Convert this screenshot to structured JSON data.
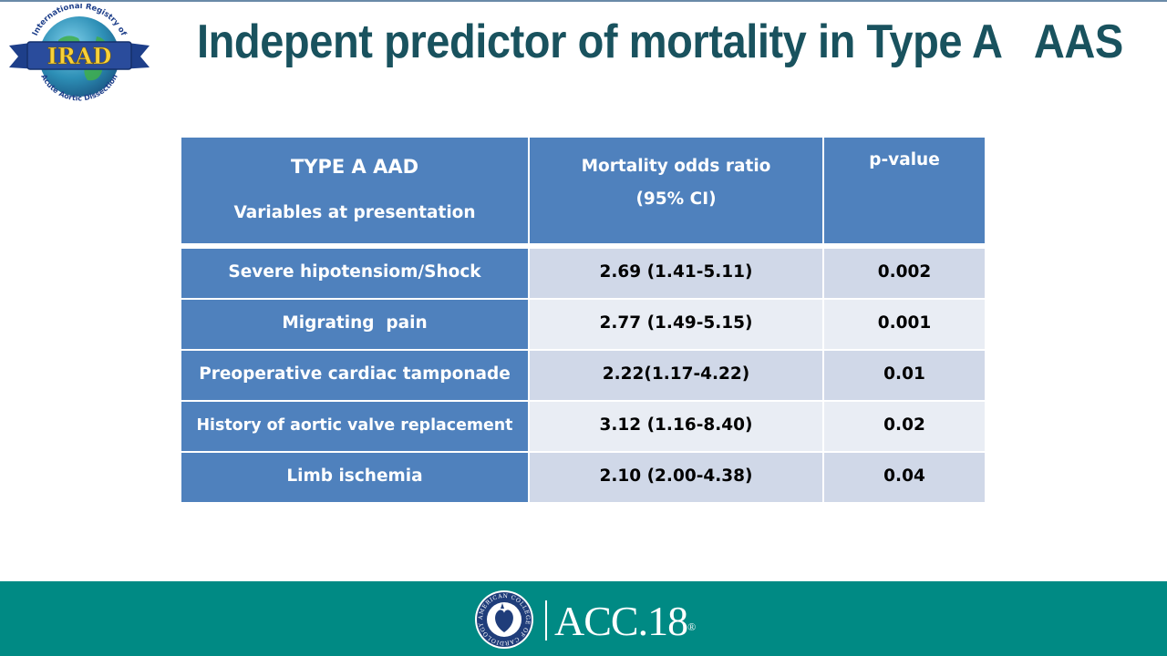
{
  "logo": {
    "name": "IRAD",
    "ring_text_top": "International Registry of",
    "ring_text_bottom": "Acute Aortic Dissection",
    "colors": {
      "ribbon": "#2a4c9c",
      "globe": "#2d8fb6",
      "text": "#f7d13a"
    }
  },
  "title": "Indepent predictor of mortality in Type A   AAS",
  "table": {
    "header": {
      "col1_title": "TYPE A AAD",
      "col1_subtitle": "Variables at presentation",
      "col2_line1": "Mortality odds ratio",
      "col2_line2": "(95% CI)",
      "col3": "p-value"
    },
    "rows": [
      {
        "variable": "Severe hipotensiom/Shock",
        "odds_ratio": "2.69 (1.41-5.11)",
        "p_value": "0.002"
      },
      {
        "variable": "Migrating  pain",
        "odds_ratio": "2.77 (1.49-5.15)",
        "p_value": "0.001"
      },
      {
        "variable": "Preoperative cardiac tamponade",
        "odds_ratio": "2.22(1.17-4.22)",
        "p_value": "0.01"
      },
      {
        "variable": "History of aortic valve replacement",
        "odds_ratio": "3.12 (1.16-8.40)",
        "p_value": "0.02"
      },
      {
        "variable": "Limb ischemia",
        "odds_ratio": "2.10 (2.00-4.38)",
        "p_value": "0.04"
      }
    ],
    "colors": {
      "header": "#4f81bd",
      "row_dark": "#d0d8e8",
      "row_light": "#e9edf4"
    }
  },
  "footer": {
    "brand": "ACC.18",
    "trademark": "®",
    "seal_text": "AMERICAN COLLEGE OF CARDIOLOGY",
    "background_color": "#008a84"
  }
}
